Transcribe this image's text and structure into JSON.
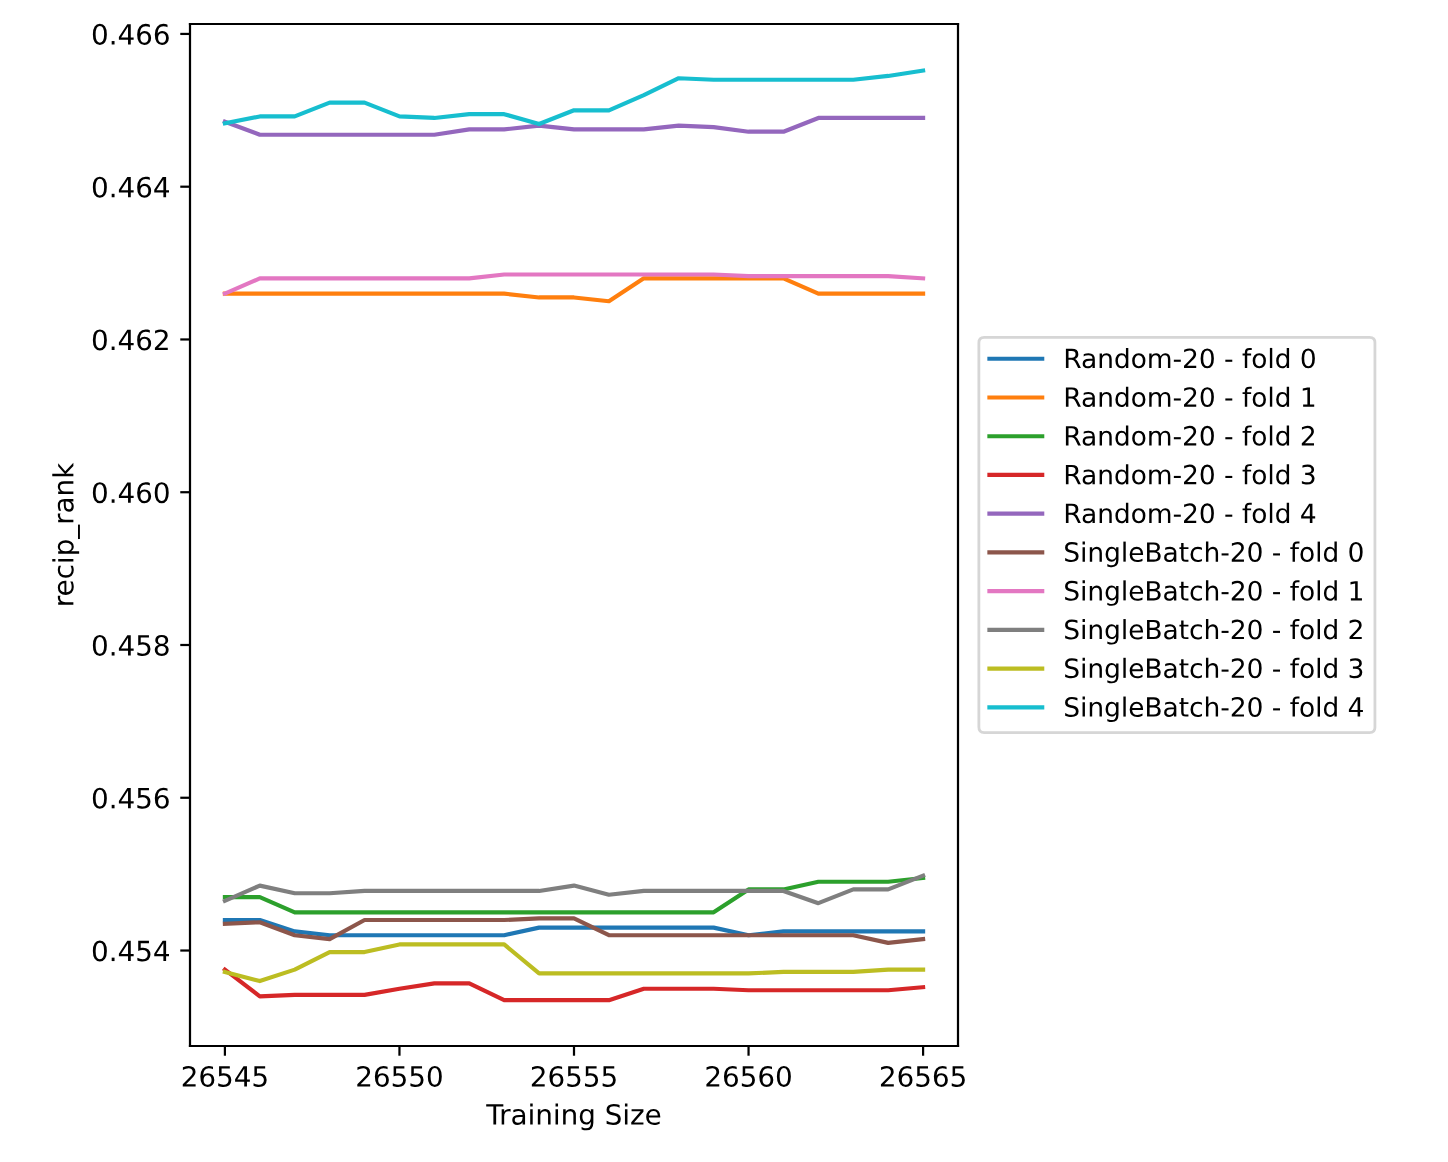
{
  "chart_data": {
    "type": "line",
    "xlabel": "Training Size",
    "ylabel": "recip_rank",
    "x": [
      26545,
      26546,
      26547,
      26548,
      26549,
      26550,
      26551,
      26552,
      26553,
      26554,
      26555,
      26556,
      26557,
      26558,
      26559,
      26560,
      26561,
      26562,
      26563,
      26564,
      26565
    ],
    "xlim": [
      26544,
      26566
    ],
    "xticks": [
      26545,
      26550,
      26555,
      26560,
      26565
    ],
    "ylim": [
      0.45275,
      0.46613
    ],
    "yticks": [
      {
        "value": 0.454,
        "label": "0.454"
      },
      {
        "value": 0.456,
        "label": "0.456"
      },
      {
        "value": 0.458,
        "label": "0.458"
      },
      {
        "value": 0.46,
        "label": "0.460"
      },
      {
        "value": 0.462,
        "label": "0.462"
      },
      {
        "value": 0.464,
        "label": "0.464"
      },
      {
        "value": 0.466,
        "label": "0.466"
      }
    ],
    "grid": false,
    "legend": "right",
    "line_style": "solid",
    "marker": "none",
    "series": [
      {
        "name": "Random-20 - fold 0",
        "color": "#1f77b4",
        "values": [
          0.4544,
          0.4544,
          0.45425,
          0.4542,
          0.4542,
          0.4542,
          0.4542,
          0.4542,
          0.4542,
          0.4543,
          0.4543,
          0.4543,
          0.4543,
          0.4543,
          0.4543,
          0.4542,
          0.45425,
          0.45425,
          0.45425,
          0.45425,
          0.45425
        ]
      },
      {
        "name": "Random-20 - fold 1",
        "color": "#ff7f0e",
        "values": [
          0.4626,
          0.4626,
          0.4626,
          0.4626,
          0.4626,
          0.4626,
          0.4626,
          0.4626,
          0.4626,
          0.46255,
          0.46255,
          0.4625,
          0.4628,
          0.4628,
          0.4628,
          0.4628,
          0.4628,
          0.4626,
          0.4626,
          0.4626,
          0.4626
        ]
      },
      {
        "name": "Random-20 - fold 2",
        "color": "#2ca02c",
        "values": [
          0.4547,
          0.4547,
          0.4545,
          0.4545,
          0.4545,
          0.4545,
          0.4545,
          0.4545,
          0.4545,
          0.4545,
          0.4545,
          0.4545,
          0.4545,
          0.4545,
          0.4545,
          0.4548,
          0.4548,
          0.4549,
          0.4549,
          0.4549,
          0.45495
        ]
      },
      {
        "name": "Random-20 - fold 3",
        "color": "#d62728",
        "values": [
          0.45375,
          0.4534,
          0.45342,
          0.45342,
          0.45342,
          0.4535,
          0.45357,
          0.45357,
          0.45335,
          0.45335,
          0.45335,
          0.45335,
          0.4535,
          0.4535,
          0.4535,
          0.45348,
          0.45348,
          0.45348,
          0.45348,
          0.45348,
          0.45352
        ]
      },
      {
        "name": "Random-20 - fold 4",
        "color": "#9467bd",
        "values": [
          0.46485,
          0.46468,
          0.46468,
          0.46468,
          0.46468,
          0.46468,
          0.46468,
          0.46475,
          0.46475,
          0.4648,
          0.46475,
          0.46475,
          0.46475,
          0.4648,
          0.46478,
          0.46472,
          0.46472,
          0.4649,
          0.4649,
          0.4649,
          0.4649
        ]
      },
      {
        "name": "SingleBatch-20 - fold 0",
        "color": "#8c564b",
        "values": [
          0.45435,
          0.45437,
          0.4542,
          0.45415,
          0.4544,
          0.4544,
          0.4544,
          0.4544,
          0.4544,
          0.45442,
          0.45442,
          0.4542,
          0.4542,
          0.4542,
          0.4542,
          0.4542,
          0.4542,
          0.4542,
          0.4542,
          0.4541,
          0.45415
        ]
      },
      {
        "name": "SingleBatch-20 - fold 1",
        "color": "#e377c2",
        "values": [
          0.4626,
          0.4628,
          0.4628,
          0.4628,
          0.4628,
          0.4628,
          0.4628,
          0.4628,
          0.46285,
          0.46285,
          0.46285,
          0.46285,
          0.46285,
          0.46285,
          0.46285,
          0.46283,
          0.46283,
          0.46283,
          0.46283,
          0.46283,
          0.4628
        ]
      },
      {
        "name": "SingleBatch-20 - fold 2",
        "color": "#7f7f7f",
        "values": [
          0.45465,
          0.45485,
          0.45475,
          0.45475,
          0.45478,
          0.45478,
          0.45478,
          0.45478,
          0.45478,
          0.45478,
          0.45485,
          0.45473,
          0.45478,
          0.45478,
          0.45478,
          0.45478,
          0.45478,
          0.45462,
          0.4548,
          0.4548,
          0.45498
        ]
      },
      {
        "name": "SingleBatch-20 - fold 3",
        "color": "#bcbd22",
        "values": [
          0.45372,
          0.4536,
          0.45375,
          0.45398,
          0.45398,
          0.45408,
          0.45408,
          0.45408,
          0.45408,
          0.4537,
          0.4537,
          0.4537,
          0.4537,
          0.4537,
          0.4537,
          0.4537,
          0.45372,
          0.45372,
          0.45372,
          0.45375,
          0.45375
        ]
      },
      {
        "name": "SingleBatch-20 - fold 4",
        "color": "#17becf",
        "values": [
          0.46483,
          0.46492,
          0.46492,
          0.4651,
          0.4651,
          0.46492,
          0.4649,
          0.46495,
          0.46495,
          0.46482,
          0.465,
          0.465,
          0.4652,
          0.46542,
          0.4654,
          0.4654,
          0.4654,
          0.4654,
          0.4654,
          0.46545,
          0.46552
        ]
      }
    ]
  }
}
